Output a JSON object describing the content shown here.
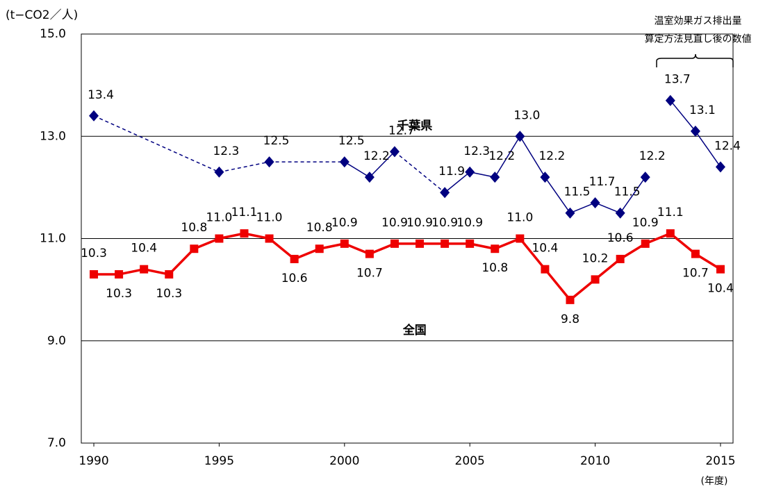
{
  "chart_data": {
    "type": "line",
    "y_label": "(t−CO2／人)",
    "x_label": "(年度)",
    "xlim": [
      1989.5,
      2015.5
    ],
    "xticks": [
      1990,
      1995,
      2000,
      2005,
      2010,
      2015
    ],
    "ylim": [
      7,
      15
    ],
    "yticks": [
      {
        "value": 7,
        "label": "7.0"
      },
      {
        "value": 9,
        "label": "9.0"
      },
      {
        "value": 11,
        "label": "11.0"
      },
      {
        "value": 13,
        "label": "13.0"
      },
      {
        "value": 15,
        "label": "15.0"
      }
    ],
    "grid": true,
    "annotations": [
      {
        "text": "千葉県",
        "x": 2002.8,
        "y": 13.2
      },
      {
        "text": "全国",
        "x": 2002.8,
        "y": 9.2
      },
      {
        "text": "温室効果ガス排出量",
        "x": 2014.1,
        "y": 15.25
      },
      {
        "text": "算定方法見直し後の数値",
        "x": 2014.1,
        "y": 14.9
      }
    ],
    "series": [
      {
        "color": "#000080",
        "marker": "diamond",
        "dash_gaps": true,
        "x": [
          1990,
          1995,
          1997,
          2000,
          2001,
          2002,
          2004,
          2005,
          2006,
          2007,
          2008,
          2009,
          2010,
          2011,
          2012
        ],
        "values": [
          13.4,
          12.3,
          12.5,
          12.5,
          12.2,
          12.7,
          11.9,
          12.3,
          12.2,
          13.0,
          12.2,
          11.5,
          11.7,
          11.5,
          12.2
        ],
        "value_labels": [
          "13.4",
          "12.3",
          "12.5",
          "12.5",
          "12.2",
          "12.7",
          "11.9",
          "12.3",
          "12.2",
          "13.0",
          "12.2",
          "11.5",
          "11.7",
          "11.5",
          "12.2"
        ]
      },
      {
        "color": "#000080",
        "marker": "diamond",
        "dash_gaps": true,
        "x": [
          2013,
          2014,
          2015
        ],
        "values": [
          13.7,
          13.1,
          12.4
        ],
        "value_labels": [
          "13.7",
          "13.1",
          "12.4"
        ]
      },
      {
        "color": "#ee0000",
        "marker": "square",
        "dash_gaps": false,
        "x": [
          1990,
          1991,
          1992,
          1993,
          1994,
          1995,
          1996,
          1997,
          1998,
          1999,
          2000,
          2001,
          2002,
          2003,
          2004,
          2005,
          2006,
          2007,
          2008,
          2009,
          2010,
          2011,
          2012,
          2013,
          2014,
          2015
        ],
        "values": [
          10.3,
          10.3,
          10.4,
          10.3,
          10.8,
          11.0,
          11.1,
          11.0,
          10.6,
          10.8,
          10.9,
          10.7,
          10.9,
          10.9,
          10.9,
          10.9,
          10.8,
          11.0,
          10.4,
          9.8,
          10.2,
          10.6,
          10.9,
          11.1,
          10.7,
          10.4
        ],
        "value_labels": [
          "10.3",
          "10.3",
          "10.4",
          "10.3",
          "10.8",
          "11.0",
          "11.1",
          "11.0",
          "10.6",
          "10.8",
          "10.9",
          "10.7",
          "10.9",
          "10.9",
          "10.9",
          "10.9",
          "10.8",
          "11.0",
          "10.4",
          "9.8",
          "10.2",
          "10.6",
          "10.9",
          "11.1",
          "10.7",
          "10.4"
        ]
      }
    ]
  }
}
